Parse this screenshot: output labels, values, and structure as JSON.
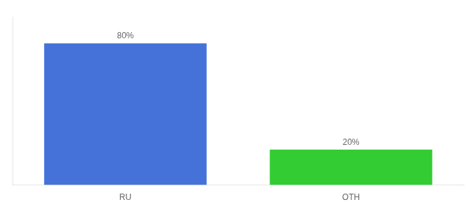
{
  "chart_data": {
    "type": "bar",
    "categories": [
      "RU",
      "OTH"
    ],
    "values": [
      80,
      20
    ],
    "value_labels": [
      "80%",
      "20%"
    ],
    "colors": [
      "#4472D9",
      "#33CC33"
    ],
    "ylim": [
      0,
      95
    ],
    "grid": false,
    "data_labels": true,
    "tick_labels": "x"
  }
}
